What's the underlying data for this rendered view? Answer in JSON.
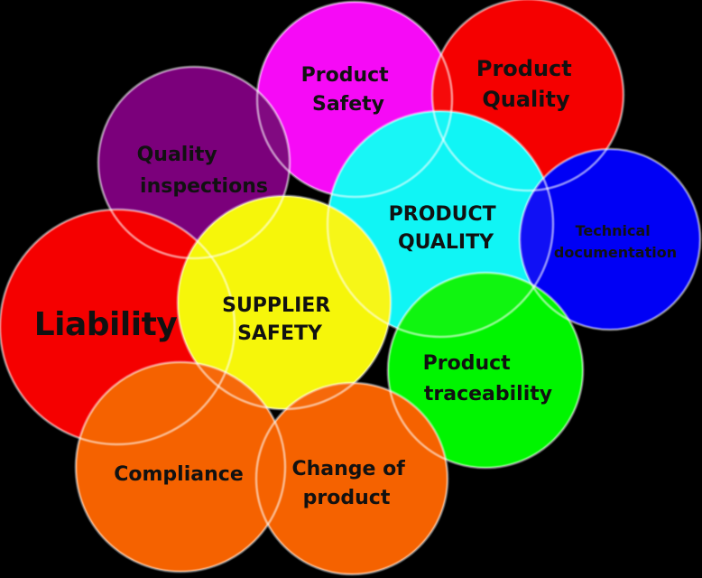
{
  "circles": {
    "product_safety": {
      "lines": [
        "Product",
        "Safety"
      ],
      "color": "#ff00ff"
    },
    "product_quality_top": {
      "lines": [
        "Product",
        "Quality"
      ],
      "color": "#ff0000"
    },
    "quality_inspections": {
      "lines": [
        "Quality",
        "inspections"
      ],
      "color": "#800080"
    },
    "product_quality_core": {
      "lines": [
        "PRODUCT",
        "QUALITY"
      ],
      "color": "#00ffff"
    },
    "technical_docs": {
      "lines": [
        "Technical",
        "documentation"
      ],
      "color": "#0000ff"
    },
    "liability": {
      "lines": [
        "Liability"
      ],
      "color": "#ff0000"
    },
    "supplier_safety": {
      "lines": [
        "SUPPLIER",
        "SAFETY"
      ],
      "color": "#ffff00"
    },
    "product_traceability": {
      "lines": [
        "Product",
        "traceability"
      ],
      "color": "#00ff00"
    },
    "compliance": {
      "lines": [
        "Compliance"
      ],
      "color": "#ff6600"
    },
    "change_of_product": {
      "lines": [
        "Change of",
        "product"
      ],
      "color": "#ff6600"
    }
  }
}
